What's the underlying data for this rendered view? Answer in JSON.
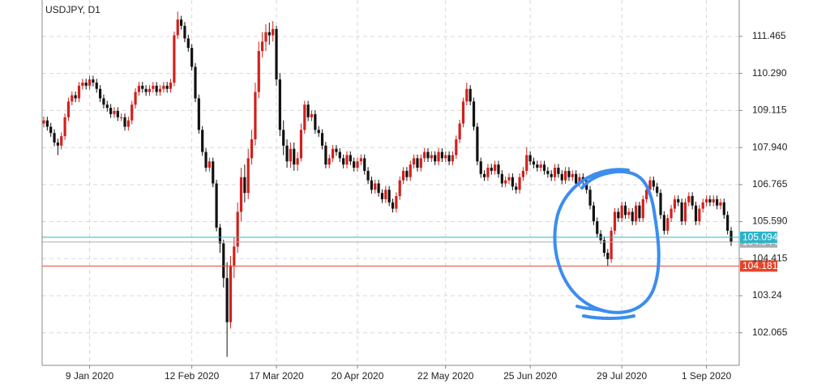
{
  "chart_data": {
    "type": "candlestick",
    "title": "USDJPY, D1",
    "categories": [
      null,
      null,
      null,
      null,
      null,
      null,
      null,
      null,
      null,
      null,
      null,
      null,
      null,
      "9 Jan 2020",
      null,
      null,
      null,
      null,
      null,
      null,
      null,
      null,
      null,
      null,
      null,
      null,
      null,
      null,
      null,
      null,
      null,
      null,
      null,
      null,
      null,
      null,
      null,
      null,
      null,
      null,
      null,
      null,
      "12 Feb 2020",
      null,
      null,
      null,
      null,
      null,
      null,
      null,
      null,
      null,
      null,
      null,
      null,
      null,
      null,
      null,
      null,
      null,
      null,
      null,
      null,
      null,
      null,
      null,
      "17 Mar 2020",
      null,
      null,
      null,
      null,
      null,
      null,
      null,
      null,
      null,
      null,
      null,
      null,
      null,
      null,
      null,
      null,
      null,
      null,
      null,
      null,
      null,
      null,
      "20 Apr 2020",
      null,
      null,
      null,
      null,
      null,
      null,
      null,
      null,
      null,
      null,
      null,
      null,
      null,
      null,
      null,
      null,
      null,
      null,
      null,
      null,
      null,
      null,
      null,
      null,
      "22 May 2020",
      null,
      null,
      null,
      null,
      null,
      null,
      null,
      null,
      null,
      null,
      null,
      null,
      null,
      null,
      null,
      null,
      null,
      null,
      null,
      null,
      null,
      null,
      null,
      "25 Jun 2020",
      null,
      null,
      null,
      null,
      null,
      null,
      null,
      null,
      null,
      null,
      null,
      null,
      null,
      null,
      null,
      null,
      null,
      null,
      null,
      null,
      null,
      null,
      null,
      null,
      null,
      "29 Jul 2020",
      null,
      null,
      null,
      null,
      null,
      null,
      null,
      null,
      null,
      null,
      null,
      null,
      null,
      null,
      null,
      null,
      null,
      null,
      null,
      null,
      null,
      null,
      null,
      "1 Sep 2020",
      null,
      null,
      null,
      null,
      null,
      null,
      null
    ],
    "open": [
      108.7,
      108.8,
      108.6,
      108.4,
      108.1,
      108.0,
      108.3,
      108.9,
      109.4,
      109.6,
      109.5,
      109.9,
      110.0,
      109.9,
      110.1,
      110.0,
      109.8,
      109.5,
      109.3,
      109.2,
      109.0,
      109.1,
      108.9,
      108.9,
      108.6,
      108.8,
      109.3,
      109.7,
      109.9,
      109.8,
      109.7,
      109.8,
      109.9,
      109.7,
      109.8,
      109.9,
      109.8,
      110.0,
      111.5,
      112.0,
      111.8,
      111.4,
      111.1,
      110.5,
      109.5,
      108.5,
      107.8,
      107.3,
      107.5,
      106.8,
      105.4,
      104.9,
      103.8,
      102.4,
      104.2,
      104.8,
      105.9,
      107.0,
      106.5,
      107.6,
      108.2,
      109.7,
      111.0,
      111.3,
      111.6,
      111.5,
      111.7,
      110.1,
      108.5,
      108.0,
      107.5,
      107.9,
      107.4,
      107.6,
      108.5,
      109.3,
      108.9,
      109.0,
      108.5,
      108.4,
      108.0,
      107.4,
      107.6,
      107.9,
      107.8,
      107.6,
      107.4,
      107.7,
      107.5,
      107.3,
      107.5,
      107.6,
      107.2,
      106.9,
      106.6,
      106.8,
      106.5,
      106.3,
      106.6,
      106.2,
      106.0,
      106.4,
      106.9,
      107.2,
      107.0,
      107.4,
      107.6,
      107.3,
      107.6,
      107.8,
      107.6,
      107.7,
      107.5,
      107.8,
      107.6,
      107.7,
      107.5,
      107.7,
      108.2,
      108.7,
      109.4,
      109.8,
      109.4,
      108.6,
      107.5,
      107.1,
      107.0,
      107.3,
      107.2,
      107.4,
      107.1,
      106.8,
      106.9,
      107.0,
      106.7,
      106.6,
      107.0,
      107.2,
      107.7,
      107.5,
      107.4,
      107.3,
      107.4,
      107.2,
      107.1,
      107.0,
      107.3,
      107.1,
      106.9,
      107.2,
      107.0,
      107.1,
      106.8,
      107.0,
      106.9,
      106.6,
      106.1,
      105.6,
      105.2,
      105.0,
      104.6,
      104.4,
      105.3,
      105.9,
      105.7,
      106.1,
      105.8,
      105.9,
      105.6,
      106.1,
      105.7,
      106.3,
      106.6,
      106.9,
      106.7,
      106.5,
      105.8,
      105.3,
      105.7,
      106.0,
      106.3,
      106.2,
      105.6,
      106.2,
      106.4,
      106.1,
      105.6,
      106.0,
      106.2,
      106.3,
      106.2,
      106.3,
      106.1,
      106.2,
      105.8,
      105.3
    ],
    "high": [
      108.92,
      108.92,
      108.72,
      108.52,
      108.22,
      108.42,
      109.02,
      109.52,
      109.72,
      109.72,
      110.02,
      110.12,
      110.12,
      110.22,
      110.22,
      110.12,
      109.92,
      109.62,
      109.42,
      109.32,
      109.22,
      109.22,
      109.02,
      109.02,
      108.92,
      109.42,
      109.82,
      110.02,
      110.02,
      109.92,
      109.92,
      110.02,
      110.02,
      109.92,
      110.02,
      110.02,
      110.12,
      111.62,
      112.25,
      112.12,
      111.92,
      111.52,
      111.22,
      110.62,
      109.62,
      108.62,
      107.92,
      107.62,
      107.62,
      106.92,
      105.52,
      105.02,
      104.3,
      104.5,
      105.1,
      106.2,
      107.3,
      107.4,
      107.9,
      108.5,
      110.0,
      111.3,
      111.6,
      111.85,
      111.9,
      111.95,
      111.8,
      110.3,
      108.8,
      108.2,
      108.1,
      108.1,
      107.8,
      108.7,
      109.42,
      109.42,
      109.12,
      109.12,
      108.62,
      108.52,
      108.12,
      107.72,
      108.02,
      108.02,
      107.92,
      107.72,
      107.82,
      107.82,
      107.62,
      107.62,
      107.72,
      107.72,
      107.32,
      107.02,
      106.92,
      106.92,
      106.62,
      106.72,
      106.72,
      106.32,
      106.52,
      107.02,
      107.32,
      107.32,
      107.52,
      107.72,
      107.72,
      107.72,
      107.92,
      107.92,
      107.82,
      107.82,
      107.92,
      107.92,
      107.82,
      107.82,
      107.82,
      108.32,
      108.82,
      109.52,
      110.0,
      109.92,
      109.52,
      108.72,
      107.62,
      107.22,
      107.42,
      107.42,
      107.52,
      107.52,
      107.22,
      107.02,
      107.12,
      107.12,
      106.82,
      107.12,
      107.32,
      107.95,
      107.82,
      107.62,
      107.52,
      107.52,
      107.52,
      107.32,
      107.22,
      107.42,
      107.42,
      107.22,
      107.32,
      107.32,
      107.22,
      107.22,
      107.12,
      107.12,
      107.02,
      106.72,
      106.22,
      105.72,
      105.32,
      105.12,
      104.72,
      105.42,
      106.02,
      106.02,
      106.22,
      106.22,
      106.02,
      106.02,
      106.22,
      106.22,
      106.42,
      106.72,
      107.02,
      107.02,
      106.82,
      106.62,
      105.92,
      105.82,
      106.12,
      106.42,
      106.42,
      106.32,
      106.32,
      106.52,
      106.52,
      106.22,
      106.12,
      106.32,
      106.42,
      106.42,
      106.42,
      106.42,
      106.32,
      106.32,
      105.92,
      105.42
    ],
    "low": [
      108.58,
      108.48,
      108.28,
      107.98,
      107.7,
      107.88,
      108.18,
      108.78,
      109.28,
      109.38,
      109.38,
      109.78,
      109.78,
      109.78,
      109.88,
      109.68,
      109.38,
      109.18,
      109.08,
      108.88,
      108.88,
      108.78,
      108.78,
      108.48,
      108.48,
      108.68,
      109.18,
      109.58,
      109.68,
      109.58,
      109.58,
      109.68,
      109.58,
      109.58,
      109.68,
      109.68,
      109.68,
      109.88,
      111.38,
      111.68,
      111.28,
      110.98,
      110.38,
      109.38,
      108.38,
      107.68,
      107.18,
      107.18,
      106.68,
      105.28,
      104.6,
      103.5,
      101.3,
      102.2,
      103.8,
      104.6,
      105.6,
      106.2,
      106.3,
      107.4,
      108.0,
      109.5,
      110.8,
      111.0,
      111.2,
      111.3,
      109.9,
      108.3,
      107.7,
      107.3,
      107.3,
      107.2,
      107.2,
      107.5,
      108.38,
      108.78,
      108.78,
      108.38,
      108.28,
      107.88,
      107.28,
      107.28,
      107.48,
      107.68,
      107.48,
      107.28,
      107.28,
      107.38,
      107.18,
      107.18,
      107.38,
      107.08,
      106.78,
      106.48,
      106.48,
      106.38,
      106.18,
      106.18,
      106.08,
      105.88,
      105.88,
      106.28,
      106.78,
      106.88,
      106.88,
      107.28,
      107.18,
      107.18,
      107.48,
      107.48,
      107.48,
      107.38,
      107.38,
      107.48,
      107.48,
      107.38,
      107.38,
      107.58,
      108.08,
      108.58,
      109.28,
      109.28,
      108.48,
      107.38,
      106.98,
      106.88,
      106.88,
      107.08,
      107.08,
      106.98,
      106.68,
      106.68,
      106.78,
      106.58,
      106.48,
      106.48,
      106.88,
      107.08,
      107.38,
      107.28,
      107.18,
      107.18,
      107.08,
      106.98,
      106.88,
      106.88,
      106.98,
      106.78,
      106.78,
      106.88,
      106.88,
      106.68,
      106.68,
      106.78,
      106.48,
      105.98,
      105.48,
      105.08,
      104.88,
      104.48,
      104.18,
      104.28,
      105.18,
      105.58,
      105.58,
      105.68,
      105.68,
      105.48,
      105.48,
      105.58,
      105.58,
      106.18,
      106.48,
      106.58,
      106.38,
      105.68,
      105.18,
      105.18,
      105.58,
      105.88,
      106.08,
      105.48,
      105.48,
      106.08,
      105.98,
      105.48,
      105.48,
      105.88,
      106.08,
      106.08,
      106.08,
      105.98,
      105.98,
      105.68,
      105.18,
      104.82
    ],
    "close": [
      108.8,
      108.6,
      108.4,
      108.1,
      108.0,
      108.3,
      108.9,
      109.4,
      109.6,
      109.5,
      109.9,
      110.0,
      109.9,
      110.1,
      110.0,
      109.8,
      109.5,
      109.3,
      109.2,
      109.0,
      109.1,
      108.9,
      108.9,
      108.6,
      108.8,
      109.3,
      109.7,
      109.9,
      109.8,
      109.7,
      109.8,
      109.9,
      109.7,
      109.8,
      109.9,
      109.8,
      110.0,
      111.5,
      112.0,
      111.8,
      111.4,
      111.1,
      110.5,
      109.5,
      108.5,
      107.8,
      107.3,
      107.5,
      106.8,
      105.4,
      104.9,
      103.8,
      102.4,
      104.2,
      104.8,
      105.9,
      107.0,
      106.5,
      107.6,
      108.2,
      109.7,
      111.0,
      111.3,
      111.6,
      111.5,
      111.7,
      110.1,
      108.5,
      108.0,
      107.5,
      107.9,
      107.4,
      107.6,
      108.5,
      109.3,
      108.9,
      109.0,
      108.5,
      108.4,
      108.0,
      107.4,
      107.6,
      107.9,
      107.8,
      107.6,
      107.4,
      107.7,
      107.5,
      107.3,
      107.5,
      107.6,
      107.2,
      106.9,
      106.6,
      106.8,
      106.5,
      106.3,
      106.6,
      106.2,
      106.0,
      106.4,
      106.9,
      107.2,
      107.0,
      107.4,
      107.6,
      107.3,
      107.6,
      107.8,
      107.6,
      107.7,
      107.5,
      107.8,
      107.6,
      107.7,
      107.5,
      107.7,
      108.2,
      108.7,
      109.4,
      109.8,
      109.4,
      108.6,
      107.5,
      107.1,
      107.0,
      107.3,
      107.2,
      107.4,
      107.1,
      106.8,
      106.9,
      107.0,
      106.7,
      106.6,
      107.0,
      107.2,
      107.7,
      107.5,
      107.4,
      107.3,
      107.4,
      107.2,
      107.1,
      107.0,
      107.3,
      107.1,
      106.9,
      107.2,
      107.0,
      107.1,
      106.8,
      107.0,
      106.9,
      106.6,
      106.1,
      105.6,
      105.2,
      105.0,
      104.6,
      104.4,
      105.3,
      105.9,
      105.7,
      106.1,
      105.8,
      105.9,
      105.6,
      106.1,
      105.7,
      106.3,
      106.6,
      106.9,
      106.7,
      106.5,
      105.8,
      105.3,
      105.7,
      106.0,
      106.3,
      106.2,
      105.6,
      106.2,
      106.4,
      106.1,
      105.6,
      106.0,
      106.2,
      106.3,
      106.2,
      106.3,
      106.1,
      106.2,
      105.8,
      105.3,
      104.94
    ],
    "up_color": "#d0211c",
    "down_color": "#111111",
    "ylim": [
      101.03,
      112.62
    ],
    "yticks": [
      102.065,
      103.24,
      104.415,
      {
        "value": 105.59,
        "label": "105.590"
      },
      106.765,
      {
        "value": 107.94,
        "label": "107.940"
      },
      109.115,
      {
        "value": 110.29,
        "label": "110.290"
      },
      111.465
    ],
    "grid": true,
    "levels": [
      {
        "value": 104.944,
        "color": "#a8adb0"
      },
      {
        "value": 105.094,
        "color": "#2bb3c8"
      },
      {
        "value": 104.181,
        "color": "#e3452a"
      }
    ]
  }
}
